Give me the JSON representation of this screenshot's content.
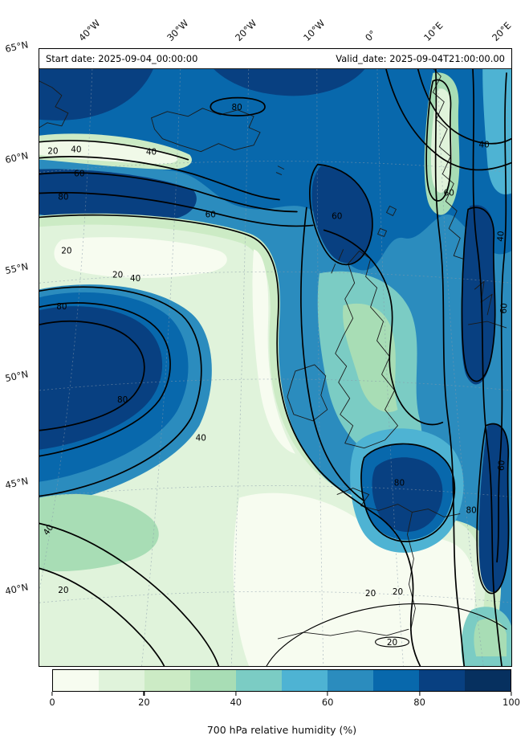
{
  "header": {
    "start_date": "Start date: 2025-09-04_00:00:00",
    "valid_date": "Valid_date: 2025-09-04T21:00:00.00"
  },
  "axes": {
    "lon": [
      "40°W",
      "30°W",
      "20°W",
      "10°W",
      "0°",
      "10°E",
      "20°E"
    ],
    "lat": [
      "65°N",
      "60°N",
      "55°N",
      "50°N",
      "45°N",
      "40°N"
    ]
  },
  "contours": {
    "l20": "20",
    "l40": "40",
    "l60": "60",
    "l80": "80"
  },
  "colorbar": {
    "label": "700 hPa relative humidity (%)",
    "ticks": [
      "0",
      "20",
      "40",
      "60",
      "80",
      "100"
    ],
    "min": 0,
    "max": 100,
    "colors": [
      "#f7fcf0",
      "#e0f3db",
      "#ccebc5",
      "#a8ddb5",
      "#7bccc4",
      "#4eb3d3",
      "#2b8cbe",
      "#0868ac",
      "#084081",
      "#06305f"
    ]
  },
  "chart_data": {
    "type": "filled-contour-map",
    "title": "700 hPa relative humidity (%)",
    "variable": "relative humidity",
    "pressure_level_hPa": 700,
    "units": "%",
    "start_date": "2025-09-04_00:00:00",
    "valid_date": "2025-09-04T21:00:00.00",
    "value_range": [
      0,
      100
    ],
    "colorbar_tick_step": 20,
    "colorbar_bins": 10,
    "contour_levels": [
      20,
      40,
      60,
      80
    ],
    "lon_ticks": [
      "40°W",
      "30°W",
      "20°W",
      "10°W",
      "0°",
      "10°E",
      "20°E"
    ],
    "lat_ticks": [
      "65°N",
      "60°N",
      "55°N",
      "50°N",
      "45°N",
      "40°N"
    ],
    "legend_position": "bottom",
    "grid": "dashed lat/lon graticule"
  }
}
